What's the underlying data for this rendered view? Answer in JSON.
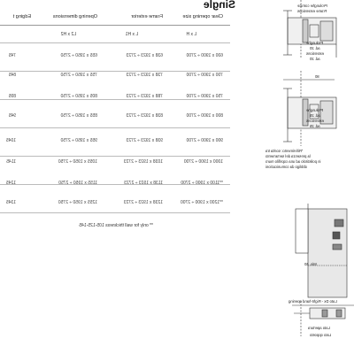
{
  "title": "Single",
  "headers": [
    "Clear opening size",
    "Frame exterior",
    "Opening dimensions",
    "Edging t"
  ],
  "subheaders": [
    "L x H",
    "L x H1",
    "L2 x H2",
    ""
  ],
  "rows": [
    [
      "600 x 1900 ÷ 2700",
      "638 x 1923 ÷ 2723",
      "655 x 1950 ÷ 2750",
      "745"
    ],
    [
      "700 x 1900 ÷ 2700",
      "738 x 1923 ÷ 2723",
      "755 x 1950 ÷ 2750",
      "845"
    ],
    [
      "750 x 1900 ÷ 2700",
      "788 x 1923 ÷ 2723",
      "805 x 1950 ÷ 2750",
      "895"
    ],
    [
      "800 x 1900 ÷ 2700",
      "838 x 1923 ÷ 2723",
      "855 x 1950 ÷ 2750",
      "945"
    ],
    [
      "900 x 1900 ÷ 2700",
      "938 x 1923 ÷ 2723",
      "955 x 1950 ÷ 2750",
      "1045"
    ],
    [
      "1000 x 1900 ÷ 2700",
      "1038 x 1923 ÷ 2723",
      "1055 x 1950 ÷ 2750",
      "1145"
    ],
    [
      "**1100 x 1900 ÷ 2700",
      "1138 x 1923 ÷ 2723",
      "1155 x 1950 ÷ 2750",
      "1245"
    ],
    [
      "**1200 x 1900 ÷ 2700",
      "1238 x 1923 ÷ 2723",
      "1255 x 1950 ÷ 2750",
      "1345"
    ]
  ],
  "footnote": "** only for wall thickness 105-125-145",
  "drawing_labels": {
    "top_a": "Prolunghe cornice",
    "top_b": "Frame extensions",
    "p1a": "Prolunghe",
    "p1b": "ad. 20",
    "p1c": "extensions",
    "p1d": "ad. 20",
    "dim80": "80",
    "p2a": "Prolunghe",
    "p2b": "ad. 25",
    "p2c": "extensions",
    "p2d": "ad. 25",
    "note_a": "\"Riferimento: scelta tra",
    "note_b": "la presenza del serramento",
    "note_c": "in polistirolo ad una coprifilo muro",
    "note_d": "obbligo da comunicazioni",
    "min": "Min. 40",
    "lato_a": "Lato Dx - Right-hand opening",
    "lato_b": "Lato apertura",
    "lato_c": "Lato opposto"
  }
}
